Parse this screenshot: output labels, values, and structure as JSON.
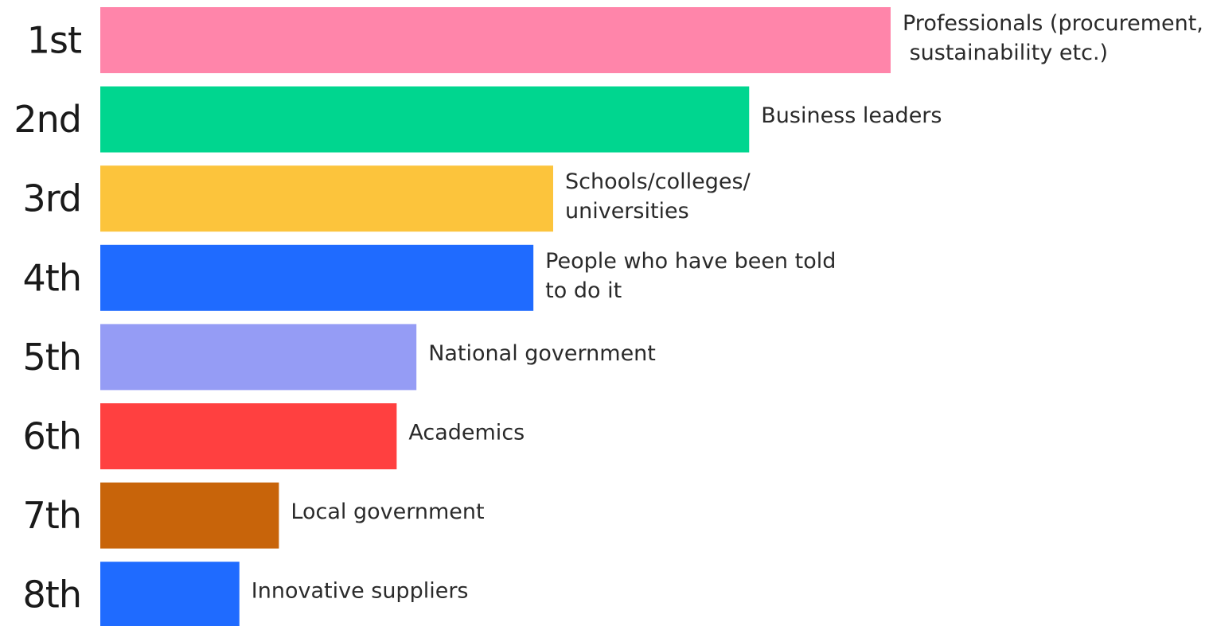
{
  "chart_data": {
    "type": "bar",
    "orientation": "horizontal",
    "categories": [
      "1st",
      "2nd",
      "3rd",
      "4th",
      "5th",
      "6th",
      "7th",
      "8th"
    ],
    "series": [
      {
        "labels": [
          [
            "Professionals (procurement,",
            " sustainability etc.)"
          ],
          [
            "Business leaders"
          ],
          [
            "Schools/colleges/",
            "universities"
          ],
          [
            "People who have been told",
            "to do it"
          ],
          [
            "National government"
          ],
          [
            "Academics"
          ],
          [
            "Local government"
          ],
          [
            "Innovative suppliers"
          ]
        ],
        "values": [
          100,
          82.1,
          57.3,
          54.8,
          40,
          37.5,
          22.6,
          17.6
        ]
      }
    ],
    "colors": [
      "#ff85aa",
      "#00d68f",
      "#fcc43c",
      "#1f6bff",
      "#959cf5",
      "#ff4040",
      "#c8640a",
      "#1f6bff"
    ],
    "xlim": [
      0,
      100
    ],
    "grid": false,
    "legend": "none",
    "title": "",
    "xlabel": "",
    "ylabel": ""
  }
}
